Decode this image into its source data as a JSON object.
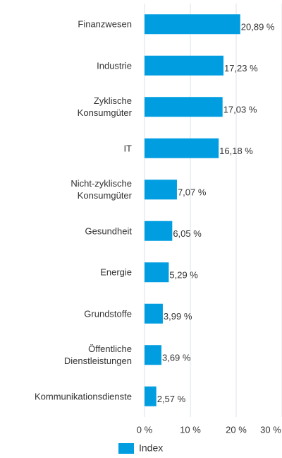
{
  "chart_data": {
    "type": "barh",
    "categories": [
      "Finanzwesen",
      "Industrie",
      "Zyklische\nKonsumgüter",
      "IT",
      "Nicht-zyklische\nKonsumgüter",
      "Gesundheit",
      "Energie",
      "Grundstoffe",
      "Öffentliche\nDienstleistungen",
      "Kommunikationsdienste"
    ],
    "series": [
      {
        "name": "Index",
        "color": "#009ee0",
        "values": [
          20.89,
          17.23,
          17.03,
          16.18,
          7.07,
          6.05,
          5.29,
          3.99,
          3.69,
          2.57
        ],
        "value_labels": [
          "20,89 %",
          "17,23 %",
          "17,03 %",
          "16,18 %",
          "7,07 %",
          "6,05 %",
          "5,29 %",
          "3,99 %",
          "3,69 %",
          "2,57 %"
        ]
      }
    ],
    "xlim": [
      0,
      30
    ],
    "xticks": [
      {
        "value": 0,
        "label": "0 %"
      },
      {
        "value": 10,
        "label": "10 %"
      },
      {
        "value": 20,
        "label": "20 %"
      },
      {
        "value": 30,
        "label": "30 %"
      }
    ],
    "grid": true
  }
}
